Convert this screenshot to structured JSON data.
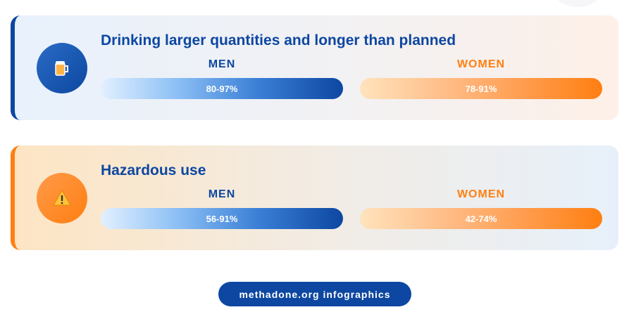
{
  "cards": [
    {
      "title": "Drinking larger quantities and longer than planned",
      "men": {
        "label": "MEN",
        "value": "80-97%"
      },
      "women": {
        "label": "WOMEN",
        "value": "78-91%"
      }
    },
    {
      "title": "Hazardous use",
      "men": {
        "label": "MEN",
        "value": "56-91%"
      },
      "women": {
        "label": "WOMEN",
        "value": "42-74%"
      }
    }
  ],
  "footer": "methadone.org infographics"
}
